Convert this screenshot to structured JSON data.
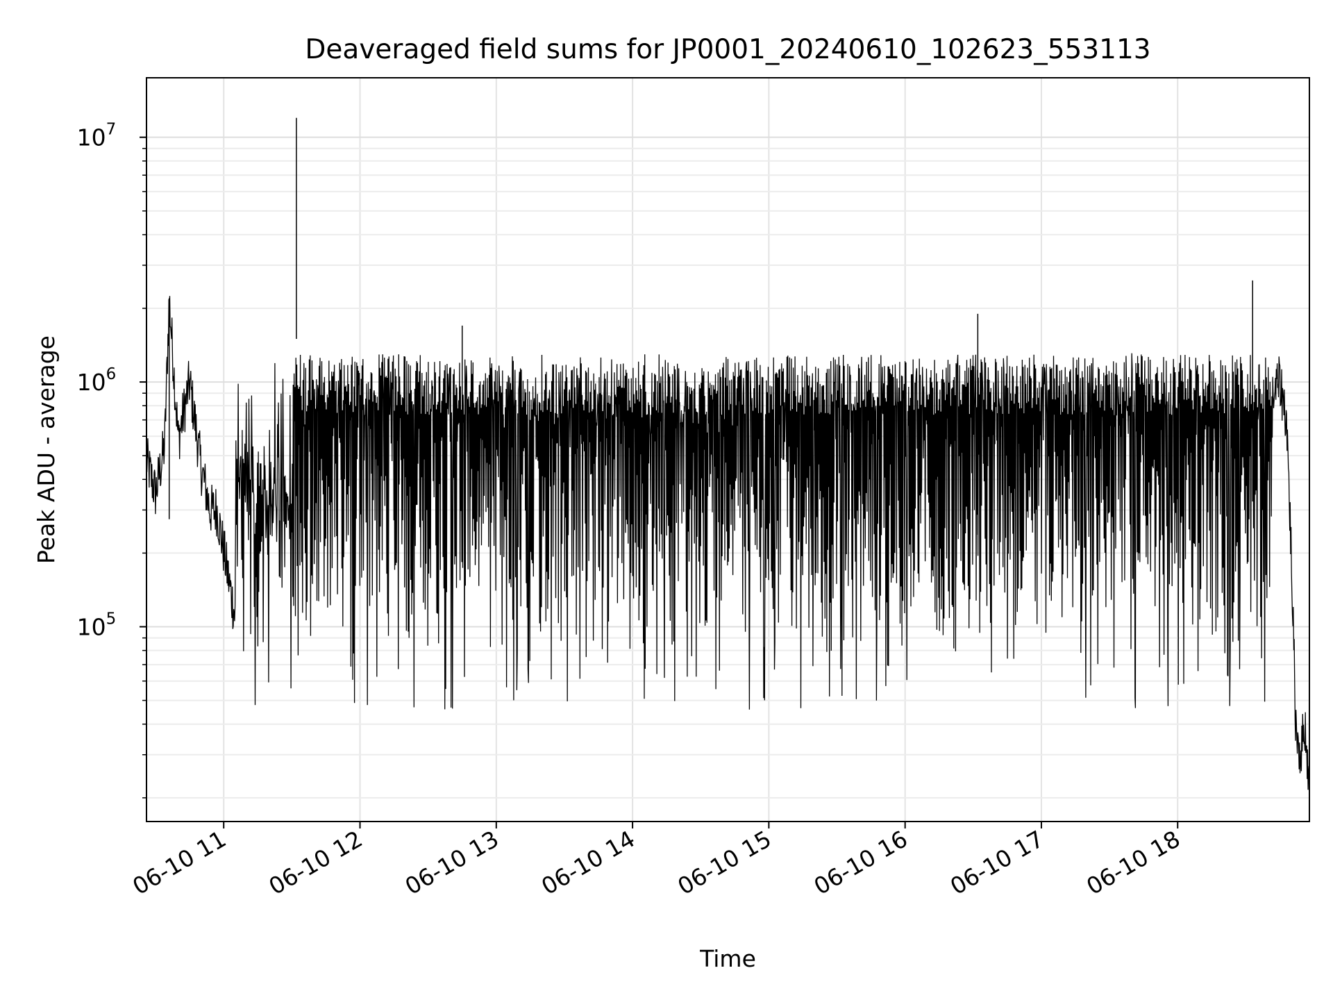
{
  "chart_data": {
    "type": "line",
    "title": "Deaveraged field sums for JP0001_20240610_102623_553113",
    "xlabel": "Time",
    "ylabel": "Peak ADU - average",
    "xscale": "time",
    "yscale": "log",
    "xlim": [
      "06-10 10:26",
      "06-10 18:58"
    ],
    "ylim": [
      16000,
      17500000
    ],
    "grid": true,
    "line_color": "#000000",
    "x_ticks": [
      {
        "time": "06-10 11:00",
        "label": "06-10 11"
      },
      {
        "time": "06-10 12:00",
        "label": "06-10 12"
      },
      {
        "time": "06-10 13:00",
        "label": "06-10 13"
      },
      {
        "time": "06-10 14:00",
        "label": "06-10 14"
      },
      {
        "time": "06-10 15:00",
        "label": "06-10 15"
      },
      {
        "time": "06-10 16:00",
        "label": "06-10 16"
      },
      {
        "time": "06-10 17:00",
        "label": "06-10 17"
      },
      {
        "time": "06-10 18:00",
        "label": "06-10 18"
      }
    ],
    "y_ticks": [
      {
        "value": 100000,
        "base": "10",
        "exp": "5"
      },
      {
        "value": 1000000,
        "base": "10",
        "exp": "6"
      },
      {
        "value": 10000000,
        "base": "10",
        "exp": "7"
      }
    ],
    "series": [
      {
        "x": [
          "06-10 10:26",
          "06-10 10:30",
          "06-10 10:34",
          "06-10 10:36",
          "06-10 10:40",
          "06-10 10:45",
          "06-10 10:50",
          "06-10 10:54",
          "06-10 10:57",
          "06-10 11:01",
          "06-10 11:05",
          "06-10 11:10",
          "06-10 11:15",
          "06-10 11:20",
          "06-10 11:25",
          "06-10 11:30",
          "06-10 11:32",
          "06-10 11:35",
          "06-10 11:45",
          "06-10 12:00",
          "06-10 12:15",
          "06-10 12:30",
          "06-10 12:45",
          "06-10 12:48",
          "06-10 13:00",
          "06-10 13:30",
          "06-10 14:00",
          "06-10 14:30",
          "06-10 14:45",
          "06-10 15:00",
          "06-10 15:10",
          "06-10 15:20",
          "06-10 15:40",
          "06-10 15:50",
          "06-10 16:00",
          "06-10 16:20",
          "06-10 16:32",
          "06-10 16:45",
          "06-10 17:00",
          "06-10 17:15",
          "06-10 17:30",
          "06-10 17:45",
          "06-10 18:00",
          "06-10 18:15",
          "06-10 18:30",
          "06-10 18:33",
          "06-10 18:42",
          "06-10 18:45",
          "06-10 18:48",
          "06-10 18:50",
          "06-10 18:52",
          "06-10 18:54",
          "06-10 18:56",
          "06-10 18:58"
        ],
        "y": [
          480000,
          350000,
          550000,
          2200000,
          580000,
          1000000,
          450000,
          300000,
          300000,
          180000,
          110000,
          80000,
          75000,
          70000,
          80000,
          65000,
          12000000,
          200000,
          250000,
          300000,
          280000,
          250000,
          1700000,
          250000,
          220000,
          200000,
          210000,
          200000,
          220000,
          450000,
          900000,
          800000,
          700000,
          700000,
          400000,
          300000,
          1900000,
          300000,
          450000,
          700000,
          500000,
          600000,
          600000,
          600000,
          500000,
          2600000,
          900000,
          1000000,
          700000,
          200000,
          40000,
          30000,
          40000,
          22000
        ]
      }
    ]
  }
}
